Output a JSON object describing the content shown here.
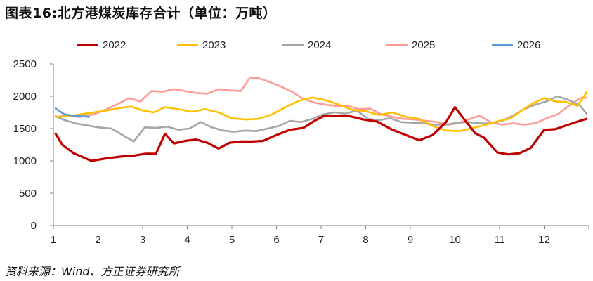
{
  "header": {
    "title": "图表16:北方港煤炭库存合计（单位：万吨）"
  },
  "footer": {
    "source": "资料来源：Wind、方正证券研究所"
  },
  "chart_data": {
    "type": "line",
    "title": "图表16:北方港煤炭库存合计（单位：万吨）",
    "xlabel": "",
    "ylabel": "",
    "x_ticks": [
      "1",
      "2",
      "3",
      "4",
      "5",
      "6",
      "7",
      "8",
      "9",
      "10",
      "11",
      "12"
    ],
    "xlim": [
      1,
      12.95
    ],
    "ylim": [
      0,
      2500
    ],
    "y_ticks": [
      "0",
      "500",
      "1000",
      "1500",
      "2000",
      "2500"
    ],
    "y_tick_values": [
      0,
      500,
      1000,
      1500,
      2000,
      2500
    ],
    "grid": false,
    "legend_position": "top",
    "series": [
      {
        "name": "2022",
        "color": "#c00000",
        "x": [
          1.05,
          1.2,
          1.45,
          1.85,
          2.2,
          2.55,
          2.8,
          3.05,
          3.3,
          3.5,
          3.7,
          3.95,
          4.2,
          4.45,
          4.7,
          4.95,
          5.2,
          5.45,
          5.7,
          6.0,
          6.3,
          6.6,
          6.85,
          7.05,
          7.35,
          7.65,
          7.95,
          8.25,
          8.6,
          8.9,
          9.2,
          9.5,
          9.8,
          10.0,
          10.2,
          10.45,
          10.65,
          10.95,
          11.2,
          11.45,
          11.7,
          12.0,
          12.25,
          12.5,
          12.8,
          12.95
        ],
        "values": [
          1420,
          1250,
          1120,
          1000,
          1040,
          1070,
          1080,
          1110,
          1110,
          1420,
          1270,
          1310,
          1330,
          1280,
          1190,
          1280,
          1300,
          1300,
          1310,
          1400,
          1480,
          1510,
          1620,
          1690,
          1700,
          1690,
          1640,
          1610,
          1480,
          1400,
          1320,
          1400,
          1600,
          1830,
          1650,
          1430,
          1360,
          1130,
          1100,
          1120,
          1200,
          1480,
          1490,
          1550,
          1620,
          1650
        ]
      },
      {
        "name": "2023",
        "color": "#ffc000",
        "x": [
          1.05,
          1.3,
          1.6,
          1.9,
          2.2,
          2.5,
          2.75,
          3.0,
          3.25,
          3.5,
          3.8,
          4.1,
          4.4,
          4.7,
          5.0,
          5.3,
          5.6,
          5.9,
          6.2,
          6.5,
          6.8,
          7.1,
          7.4,
          7.7,
          8.0,
          8.3,
          8.6,
          8.9,
          9.2,
          9.5,
          9.8,
          10.1,
          10.4,
          10.7,
          11.0,
          11.25,
          11.5,
          11.75,
          12.0,
          12.25,
          12.5,
          12.75,
          12.95
        ],
        "values": [
          1680,
          1690,
          1720,
          1750,
          1780,
          1820,
          1840,
          1780,
          1750,
          1830,
          1800,
          1760,
          1800,
          1750,
          1660,
          1640,
          1650,
          1720,
          1830,
          1930,
          1980,
          1940,
          1870,
          1790,
          1770,
          1710,
          1750,
          1680,
          1650,
          1540,
          1470,
          1460,
          1510,
          1560,
          1620,
          1660,
          1780,
          1890,
          1970,
          1920,
          1910,
          1850,
          2060
        ]
      },
      {
        "name": "2024",
        "color": "#a6a6a6",
        "x": [
          1.05,
          1.25,
          1.5,
          1.75,
          2.0,
          2.3,
          2.55,
          2.8,
          3.05,
          3.3,
          3.55,
          3.8,
          4.05,
          4.3,
          4.55,
          4.8,
          5.05,
          5.3,
          5.55,
          5.8,
          6.05,
          6.3,
          6.55,
          6.8,
          7.05,
          7.3,
          7.55,
          7.8,
          8.05,
          8.3,
          8.55,
          8.8,
          9.05,
          9.3,
          9.55,
          9.8,
          10.05,
          10.3,
          10.55,
          10.8,
          11.05,
          11.3,
          11.55,
          11.8,
          12.05,
          12.3,
          12.55,
          12.8,
          12.95
        ],
        "values": [
          1690,
          1630,
          1580,
          1550,
          1520,
          1500,
          1400,
          1300,
          1520,
          1510,
          1530,
          1480,
          1500,
          1600,
          1520,
          1470,
          1450,
          1470,
          1460,
          1500,
          1540,
          1620,
          1600,
          1650,
          1720,
          1750,
          1730,
          1780,
          1650,
          1630,
          1660,
          1600,
          1590,
          1580,
          1560,
          1560,
          1590,
          1600,
          1580,
          1580,
          1620,
          1700,
          1800,
          1870,
          1920,
          2000,
          1940,
          1860,
          1730
        ]
      },
      {
        "name": "2025",
        "color": "#ff9a9a",
        "x": [
          1.05,
          1.3,
          1.6,
          1.9,
          2.2,
          2.5,
          2.7,
          2.95,
          3.2,
          3.45,
          3.7,
          3.95,
          4.2,
          4.45,
          4.7,
          4.95,
          5.2,
          5.4,
          5.6,
          5.85,
          6.1,
          6.35,
          6.6,
          6.85,
          7.1,
          7.35,
          7.6,
          7.85,
          8.1,
          8.35,
          8.6,
          8.85,
          9.1,
          9.35,
          9.6,
          9.85,
          10.05,
          10.3,
          10.55,
          10.8,
          11.05,
          11.3,
          11.55,
          11.8,
          12.05,
          12.3,
          12.55,
          12.8,
          12.95
        ],
        "values": [
          1680,
          1700,
          1680,
          1720,
          1800,
          1900,
          1970,
          1920,
          2080,
          2070,
          2110,
          2080,
          2050,
          2040,
          2110,
          2090,
          2080,
          2280,
          2280,
          2220,
          2150,
          2070,
          1960,
          1900,
          1870,
          1850,
          1850,
          1800,
          1810,
          1720,
          1680,
          1650,
          1640,
          1620,
          1600,
          1560,
          1580,
          1640,
          1700,
          1600,
          1560,
          1580,
          1560,
          1580,
          1660,
          1720,
          1850,
          1970,
          1980
        ]
      },
      {
        "name": "2026",
        "color": "#5b9bd5",
        "x": [
          1.05,
          1.25,
          1.45,
          1.65,
          1.8
        ],
        "values": [
          1810,
          1720,
          1700,
          1690,
          1680
        ]
      }
    ]
  }
}
